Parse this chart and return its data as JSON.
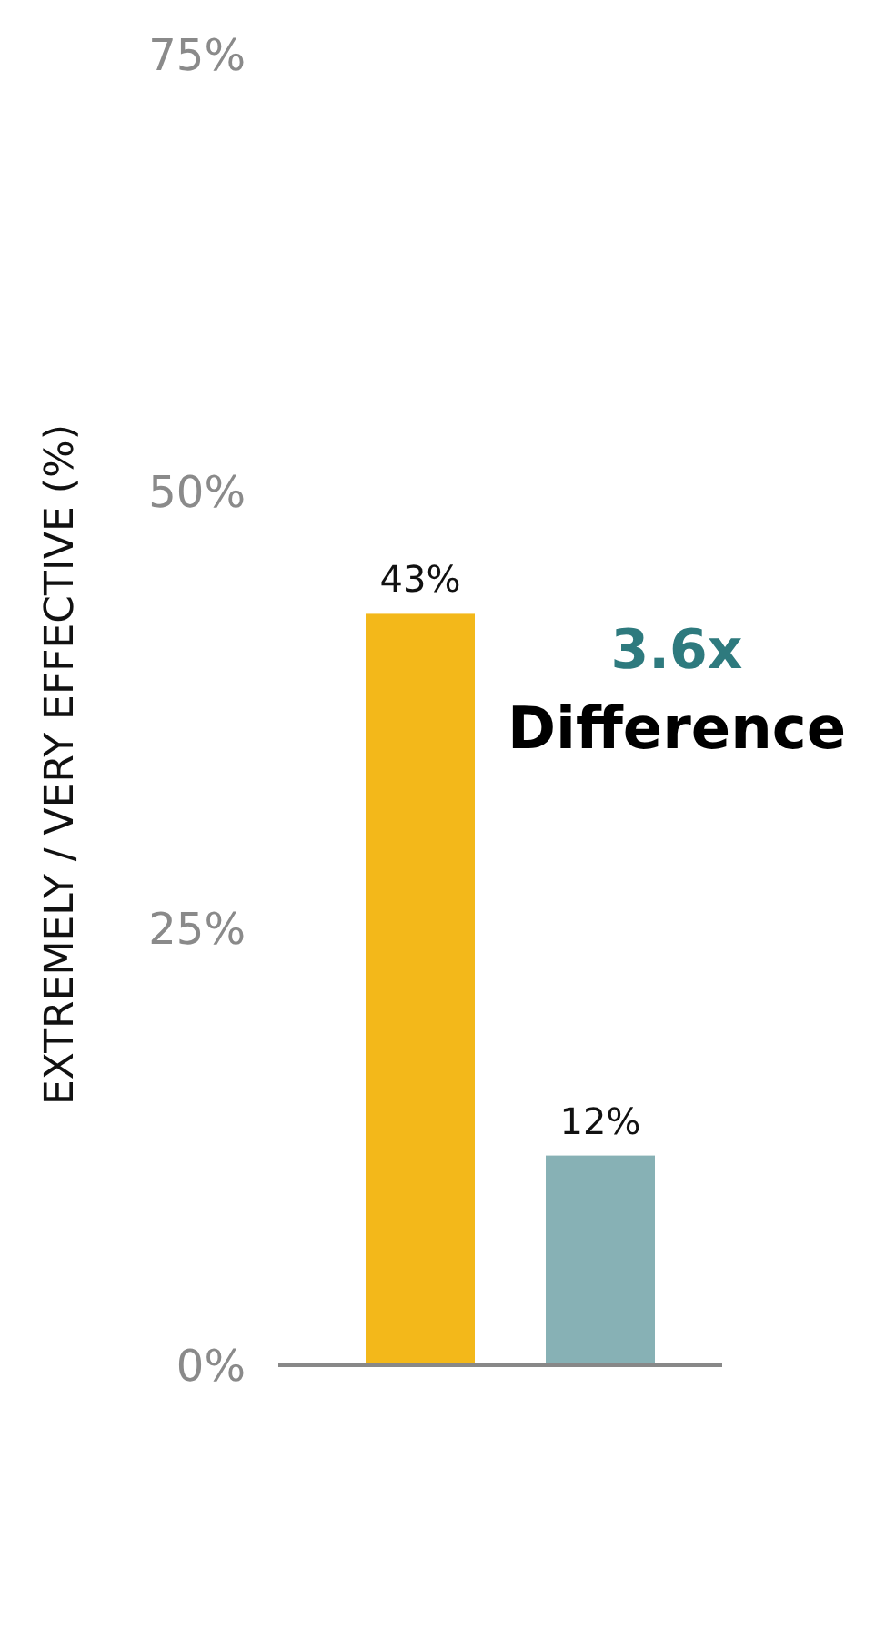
{
  "chart_data": {
    "type": "bar",
    "ylabel": "EXTREMELY / VERY EFFECTIVE (%)",
    "categories": [
      null,
      null
    ],
    "values": [
      43,
      12
    ],
    "colors": [
      "#f3b81a",
      "#87b1b5"
    ],
    "value_labels": [
      "43%",
      "12%"
    ],
    "ylim": [
      0,
      75
    ],
    "yticks": [
      {
        "value": 0,
        "label": "0%"
      },
      {
        "value": 25,
        "label": "25%"
      },
      {
        "value": 50,
        "label": "50%"
      },
      {
        "value": 75,
        "label": "75%"
      }
    ],
    "annotations": [
      "3.6x",
      "Difference"
    ]
  }
}
